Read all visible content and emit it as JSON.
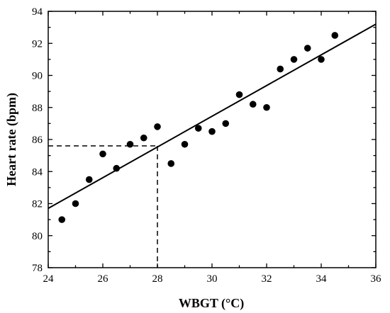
{
  "chart_data": {
    "type": "scatter",
    "title": "",
    "xlabel": "WBGT (°C)",
    "ylabel": "Heart rate (bpm)",
    "xlim": [
      24,
      36
    ],
    "ylim": [
      78,
      94
    ],
    "x_ticks": [
      24,
      26,
      28,
      30,
      32,
      34,
      36
    ],
    "y_ticks": [
      78,
      80,
      82,
      84,
      86,
      88,
      90,
      92,
      94
    ],
    "grid": false,
    "legend": "none",
    "series": [
      {
        "points": [
          {
            "x": 24.5,
            "y": 81.0
          },
          {
            "x": 25.0,
            "y": 82.0
          },
          {
            "x": 25.5,
            "y": 83.5
          },
          {
            "x": 26.0,
            "y": 85.1
          },
          {
            "x": 26.5,
            "y": 84.2
          },
          {
            "x": 27.0,
            "y": 85.7
          },
          {
            "x": 27.5,
            "y": 86.1
          },
          {
            "x": 28.0,
            "y": 86.8
          },
          {
            "x": 28.5,
            "y": 84.5
          },
          {
            "x": 29.0,
            "y": 85.7
          },
          {
            "x": 29.5,
            "y": 86.7
          },
          {
            "x": 30.0,
            "y": 86.5
          },
          {
            "x": 30.5,
            "y": 87.0
          },
          {
            "x": 31.0,
            "y": 88.8
          },
          {
            "x": 31.5,
            "y": 88.2
          },
          {
            "x": 32.0,
            "y": 88.0
          },
          {
            "x": 32.5,
            "y": 90.4
          },
          {
            "x": 33.0,
            "y": 91.0
          },
          {
            "x": 33.5,
            "y": 91.7
          },
          {
            "x": 34.0,
            "y": 91.0
          },
          {
            "x": 34.5,
            "y": 92.5
          }
        ]
      }
    ],
    "fit_line": {
      "x": [
        24,
        36
      ],
      "y": [
        81.7,
        93.2
      ]
    },
    "reference_point": {
      "x": 28,
      "y": 85.6
    },
    "colors": {
      "markers": "#000000",
      "fit_line": "#000000",
      "reference_lines": "#000000"
    }
  }
}
